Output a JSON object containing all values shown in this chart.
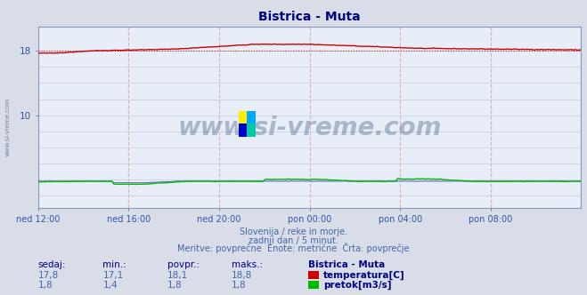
{
  "title": "Bistrica - Muta",
  "title_color": "#000080",
  "title_fontsize": 10,
  "bg_color": "#d8dde8",
  "plot_bg_color": "#e8eef8",
  "grid_color_v": "#e0b0b0",
  "grid_color_h": "#c8c8d8",
  "x_tick_labels": [
    "ned 12:00",
    "ned 16:00",
    "ned 20:00",
    "pon 00:00",
    "pon 04:00",
    "pon 08:00"
  ],
  "x_tick_positions": [
    0.0,
    0.1667,
    0.3333,
    0.5,
    0.6667,
    0.8333
  ],
  "y_ticks": [
    10,
    18
  ],
  "ylim": [
    -1.5,
    21.0
  ],
  "xlim": [
    0,
    1.0
  ],
  "temp_color": "#cc0000",
  "flow_color": "#00bb00",
  "height_color": "#4444cc",
  "watermark_text": "www.si-vreme.com",
  "watermark_color": "#1a3a6b",
  "watermark_alpha": 0.3,
  "side_text": "www.si-vreme.com",
  "subtitle_line1": "Slovenija / reke in morje.",
  "subtitle_line2": "zadnji dan / 5 minut.",
  "subtitle_line3": "Meritve: povprečne  Enote: metrične  Črta: povprečje",
  "subtitle_color": "#4466aa",
  "table_headers": [
    "sedaj:",
    "min.:",
    "povpr.:",
    "maks.:",
    "Bistrica - Muta"
  ],
  "table_row1": [
    "17,8",
    "17,1",
    "18,1",
    "18,8",
    "temperatura[C]"
  ],
  "table_row2": [
    "1,8",
    "1,4",
    "1,8",
    "1,8",
    "pretok[m3/s]"
  ],
  "table_color": "#4466aa",
  "table_header_color": "#000088",
  "tick_label_color": "#3355aa",
  "ref_line_y": 18,
  "ref_line_color": "#cc0000",
  "logo_colors": [
    "#ffee00",
    "#00aaff",
    "#0000cc",
    "#00ccaa"
  ]
}
